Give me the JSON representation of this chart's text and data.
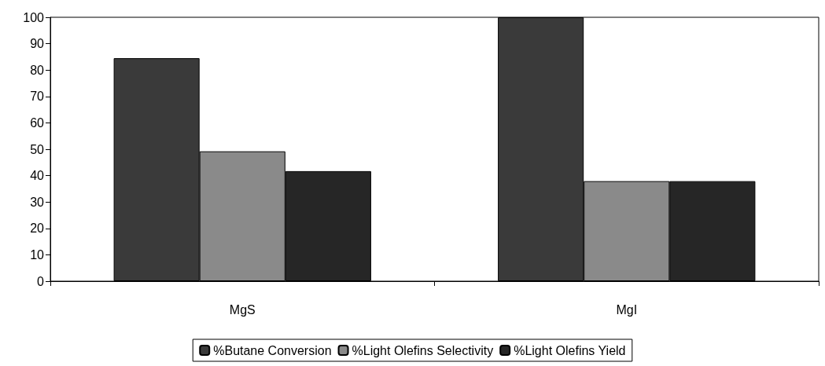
{
  "chart_data": {
    "type": "bar",
    "categories": [
      "MgS",
      "MgI"
    ],
    "series": [
      {
        "name": "%Butane Conversion",
        "color": "#3a3a3a",
        "values": [
          84.5,
          100
        ]
      },
      {
        "name": "%Light Olefins Selectivity",
        "color": "#8a8a8a",
        "values": [
          49.2,
          37.9
        ]
      },
      {
        "name": "%Light Olefins Yield",
        "color": "#262626",
        "values": [
          41.7,
          37.9
        ]
      }
    ],
    "ylim": [
      0,
      100
    ],
    "yticks": [
      0,
      10,
      20,
      30,
      40,
      50,
      60,
      70,
      80,
      90,
      100
    ],
    "grid": false,
    "legend": "bottom"
  }
}
